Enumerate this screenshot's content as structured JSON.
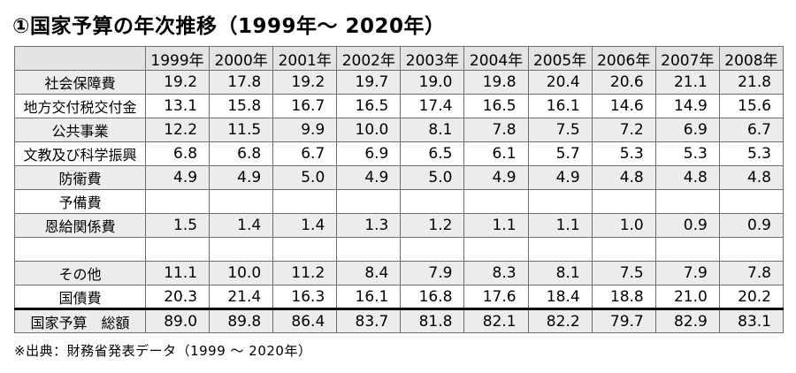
{
  "title": "①国家予算の年次推移（1999年～ 2020年）",
  "source_note": "※出典：財務省発表データ（1999 ～ 2020年）",
  "chart_data": {
    "type": "table",
    "title": "①国家予算の年次推移（1999年～ 2020年）",
    "corner_label": "",
    "categories": [
      "1999年",
      "2000年",
      "2001年",
      "2002年",
      "2003年",
      "2004年",
      "2005年",
      "2006年",
      "2007年",
      "2008年"
    ],
    "rows": [
      {
        "label": "社会保障費",
        "values": [
          "19.2",
          "17.8",
          "19.2",
          "19.7",
          "19.0",
          "19.8",
          "20.4",
          "20.6",
          "21.1",
          "21.8"
        ]
      },
      {
        "label": "地方交付税交付金",
        "values": [
          "13.1",
          "15.8",
          "16.7",
          "16.5",
          "17.4",
          "16.5",
          "16.1",
          "14.6",
          "14.9",
          "15.6"
        ]
      },
      {
        "label": "公共事業",
        "values": [
          "12.2",
          "11.5",
          "9.9",
          "10.0",
          "8.1",
          "7.8",
          "7.5",
          "7.2",
          "6.9",
          "6.7"
        ]
      },
      {
        "label": "文教及び科学振興",
        "values": [
          "6.8",
          "6.8",
          "6.7",
          "6.9",
          "6.5",
          "6.1",
          "5.7",
          "5.3",
          "5.3",
          "5.3"
        ]
      },
      {
        "label": "防衛費",
        "values": [
          "4.9",
          "4.9",
          "5.0",
          "4.9",
          "5.0",
          "4.9",
          "4.9",
          "4.8",
          "4.8",
          "4.8"
        ]
      },
      {
        "label": "予備費",
        "values": []
      },
      {
        "label": "恩給関係費",
        "values": [
          "1.5",
          "1.4",
          "1.4",
          "1.3",
          "1.2",
          "1.1",
          "1.1",
          "1.0",
          "0.9",
          "0.9"
        ]
      },
      {
        "label": "",
        "values": []
      },
      {
        "label": "その他",
        "values": [
          "11.1",
          "10.0",
          "11.2",
          "8.4",
          "7.9",
          "8.3",
          "8.1",
          "7.5",
          "7.9",
          "7.8"
        ]
      },
      {
        "label": "国債費",
        "values": [
          "20.3",
          "21.4",
          "16.3",
          "16.1",
          "16.8",
          "17.6",
          "18.4",
          "18.8",
          "21.0",
          "20.2"
        ]
      },
      {
        "label": "国家予算　総額",
        "values": [
          "89.0",
          "89.8",
          "86.4",
          "83.7",
          "81.8",
          "82.1",
          "82.2",
          "79.7",
          "82.9",
          "83.1"
        ],
        "is_total": true
      }
    ]
  }
}
